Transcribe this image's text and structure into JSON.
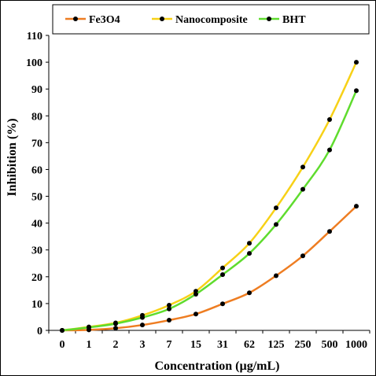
{
  "chart_data": {
    "type": "line",
    "xlabel": "Concentration (µg/mL)",
    "ylabel": "Inhibition (%)",
    "categories": [
      "0",
      "1",
      "2",
      "3",
      "7",
      "15",
      "31",
      "62",
      "125",
      "250",
      "500",
      "1000"
    ],
    "ylim": [
      0,
      110
    ],
    "yticks": [
      0,
      10,
      20,
      30,
      40,
      50,
      60,
      70,
      80,
      90,
      100,
      110
    ],
    "grid": false,
    "legend_position": "top",
    "series": [
      {
        "name": "Fe3O4",
        "color": "#ee7d22",
        "values": [
          0,
          0.2,
          0.8,
          2,
          3.8,
          6.1,
          9.9,
          14,
          20.4,
          27.8,
          36.9,
          46.3
        ]
      },
      {
        "name": "Nanocomposite",
        "color": "#f7d117",
        "values": [
          0,
          1.3,
          2.8,
          5.6,
          9.4,
          14.6,
          23.3,
          32.5,
          45.7,
          60.9,
          78.6,
          100
        ]
      },
      {
        "name": "BHT",
        "color": "#5fdc2e",
        "values": [
          0,
          1.1,
          2.5,
          4.8,
          8,
          13.5,
          20.8,
          28.7,
          39.5,
          52.6,
          67.3,
          89.4
        ]
      }
    ]
  }
}
